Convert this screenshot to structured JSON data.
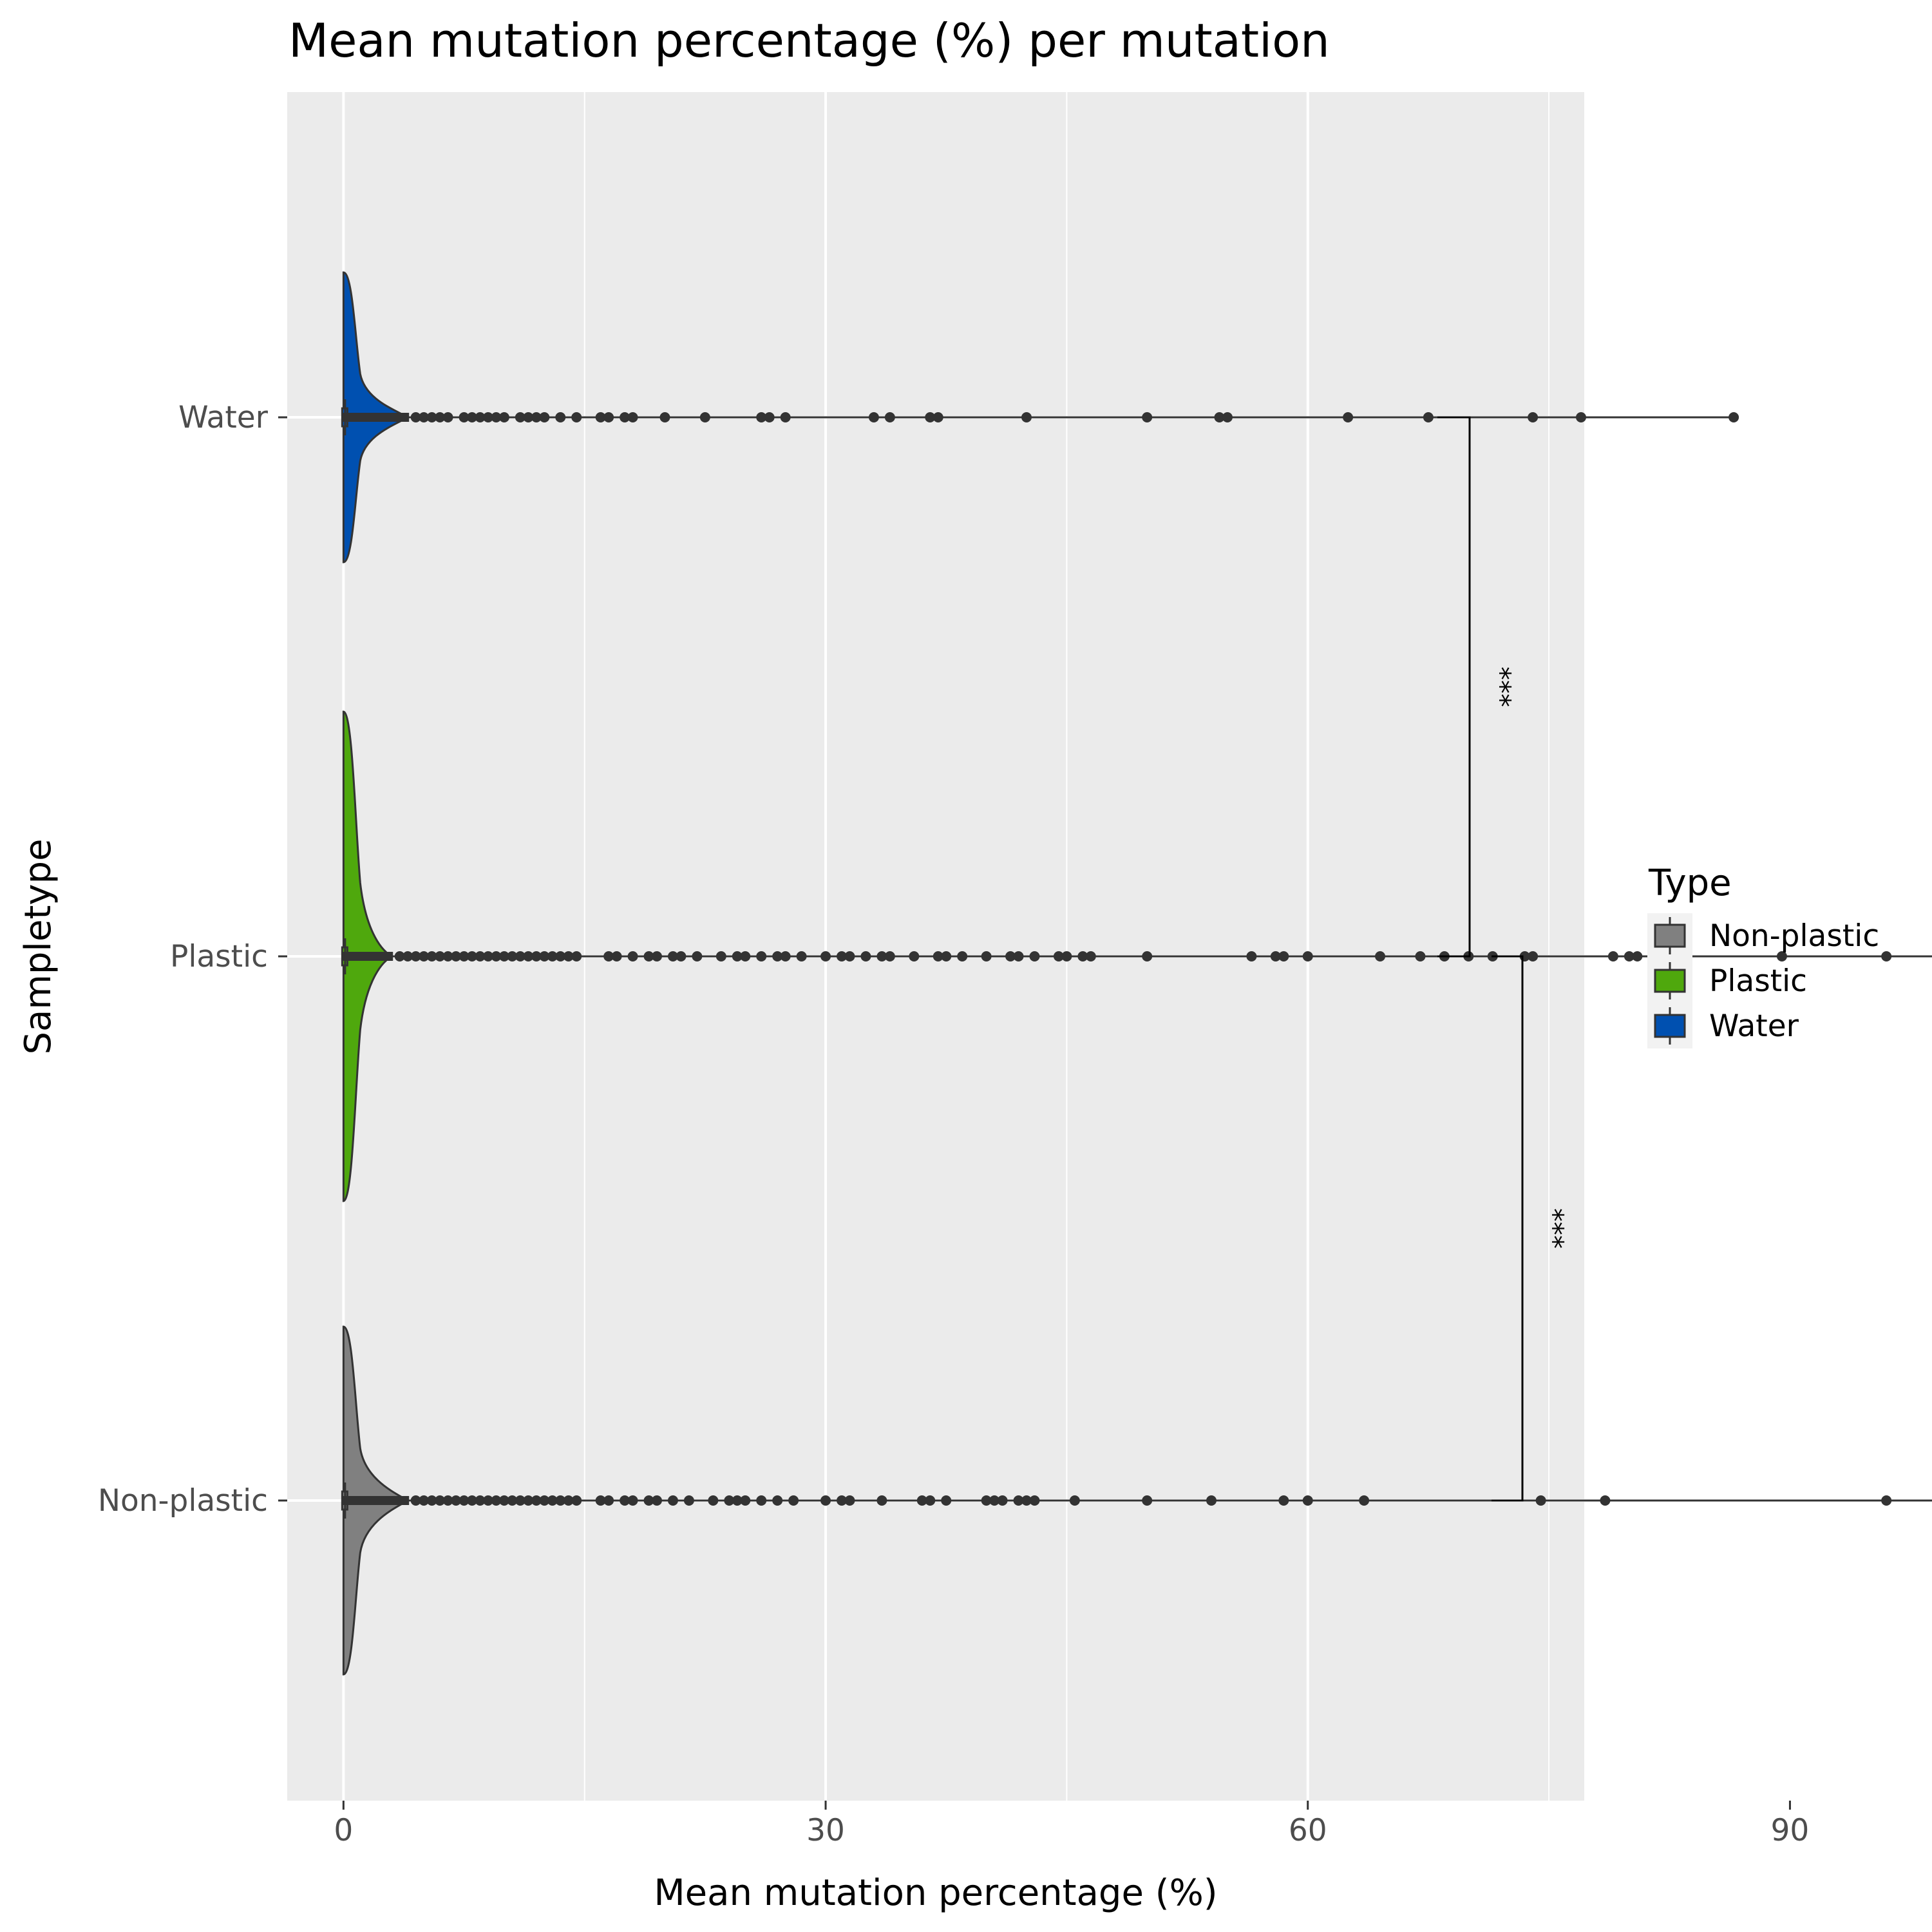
{
  "chart_data": {
    "type": "violin",
    "title": "Mean mutation percentage (%) per mutation",
    "xlabel": "Mean mutation percentage (%)",
    "ylabel": "Sampletype",
    "xlim": [
      -3.5,
      77.2
    ],
    "x_ticks": [
      0,
      30,
      60,
      90
    ],
    "categories": [
      "Non-plastic",
      "Plastic",
      "Water"
    ],
    "grid": true,
    "legend": {
      "title": "Type",
      "position": "right",
      "entries": [
        {
          "label": "Non-plastic",
          "color": "#808080"
        },
        {
          "label": "Plastic",
          "color": "#4fa80d"
        },
        {
          "label": "Water",
          "color": "#0050b0"
        }
      ]
    },
    "series": [
      {
        "name": "Non-plastic",
        "color": "#808080",
        "median": 0.1,
        "density_extent": 4,
        "whisker_max": 100,
        "outliers": [
          4.5,
          5,
          5.5,
          6,
          6.5,
          7,
          7.5,
          8,
          8.5,
          9,
          9.5,
          10,
          10.5,
          11,
          11.5,
          12,
          12.5,
          13,
          13.5,
          14,
          14.5,
          16,
          16.5,
          17.5,
          18,
          19,
          19.5,
          20.5,
          21.5,
          23,
          24,
          24.5,
          25,
          26,
          27,
          28,
          30,
          31,
          31.5,
          33.5,
          36,
          36.5,
          37.5,
          40,
          40.5,
          41,
          42,
          42.5,
          43,
          45.5,
          50,
          54,
          58.5,
          60,
          63.5,
          74.5,
          78.5,
          96,
          100
        ]
      },
      {
        "name": "Plastic",
        "color": "#4fa80d",
        "median": 0.1,
        "density_extent": 3,
        "whisker_max": 100,
        "outliers": [
          3.5,
          4,
          4.5,
          5,
          5.5,
          6,
          6.5,
          7,
          7.5,
          8,
          8.5,
          9,
          9.5,
          10,
          10.5,
          11,
          11.5,
          12,
          12.5,
          13,
          13.5,
          14,
          14.5,
          16.5,
          17,
          18,
          19,
          19.5,
          20.5,
          21,
          22,
          23.5,
          24.5,
          25,
          26,
          27,
          27.5,
          28.5,
          30,
          31,
          31.5,
          32.5,
          33.5,
          34,
          35.5,
          37,
          37.5,
          38.5,
          40,
          41.5,
          42,
          43,
          44.5,
          45,
          46,
          46.5,
          50,
          56.5,
          58,
          58.5,
          60,
          64.5,
          67,
          68.5,
          70,
          71.5,
          73.5,
          74,
          79,
          80,
          80.5,
          83.5,
          89.5,
          96,
          100
        ]
      },
      {
        "name": "Water",
        "color": "#0050b0",
        "median": 0.1,
        "density_extent": 4,
        "whisker_max": 86.5,
        "outliers": [
          4.5,
          5,
          5.5,
          6,
          6.5,
          7.5,
          8,
          8.5,
          9,
          9.5,
          10,
          11,
          11.5,
          12,
          12.5,
          13.5,
          14.5,
          16,
          16.5,
          17.5,
          18,
          20,
          22.5,
          26,
          26.5,
          27.5,
          33,
          34,
          36.5,
          37,
          42.5,
          50,
          54.5,
          55,
          62.5,
          67.5,
          74,
          77,
          86.5
        ]
      }
    ],
    "significance": [
      {
        "groups": [
          "Water",
          "Plastic"
        ],
        "label": "***"
      },
      {
        "groups": [
          "Plastic",
          "Non-plastic"
        ],
        "label": "***"
      }
    ]
  }
}
